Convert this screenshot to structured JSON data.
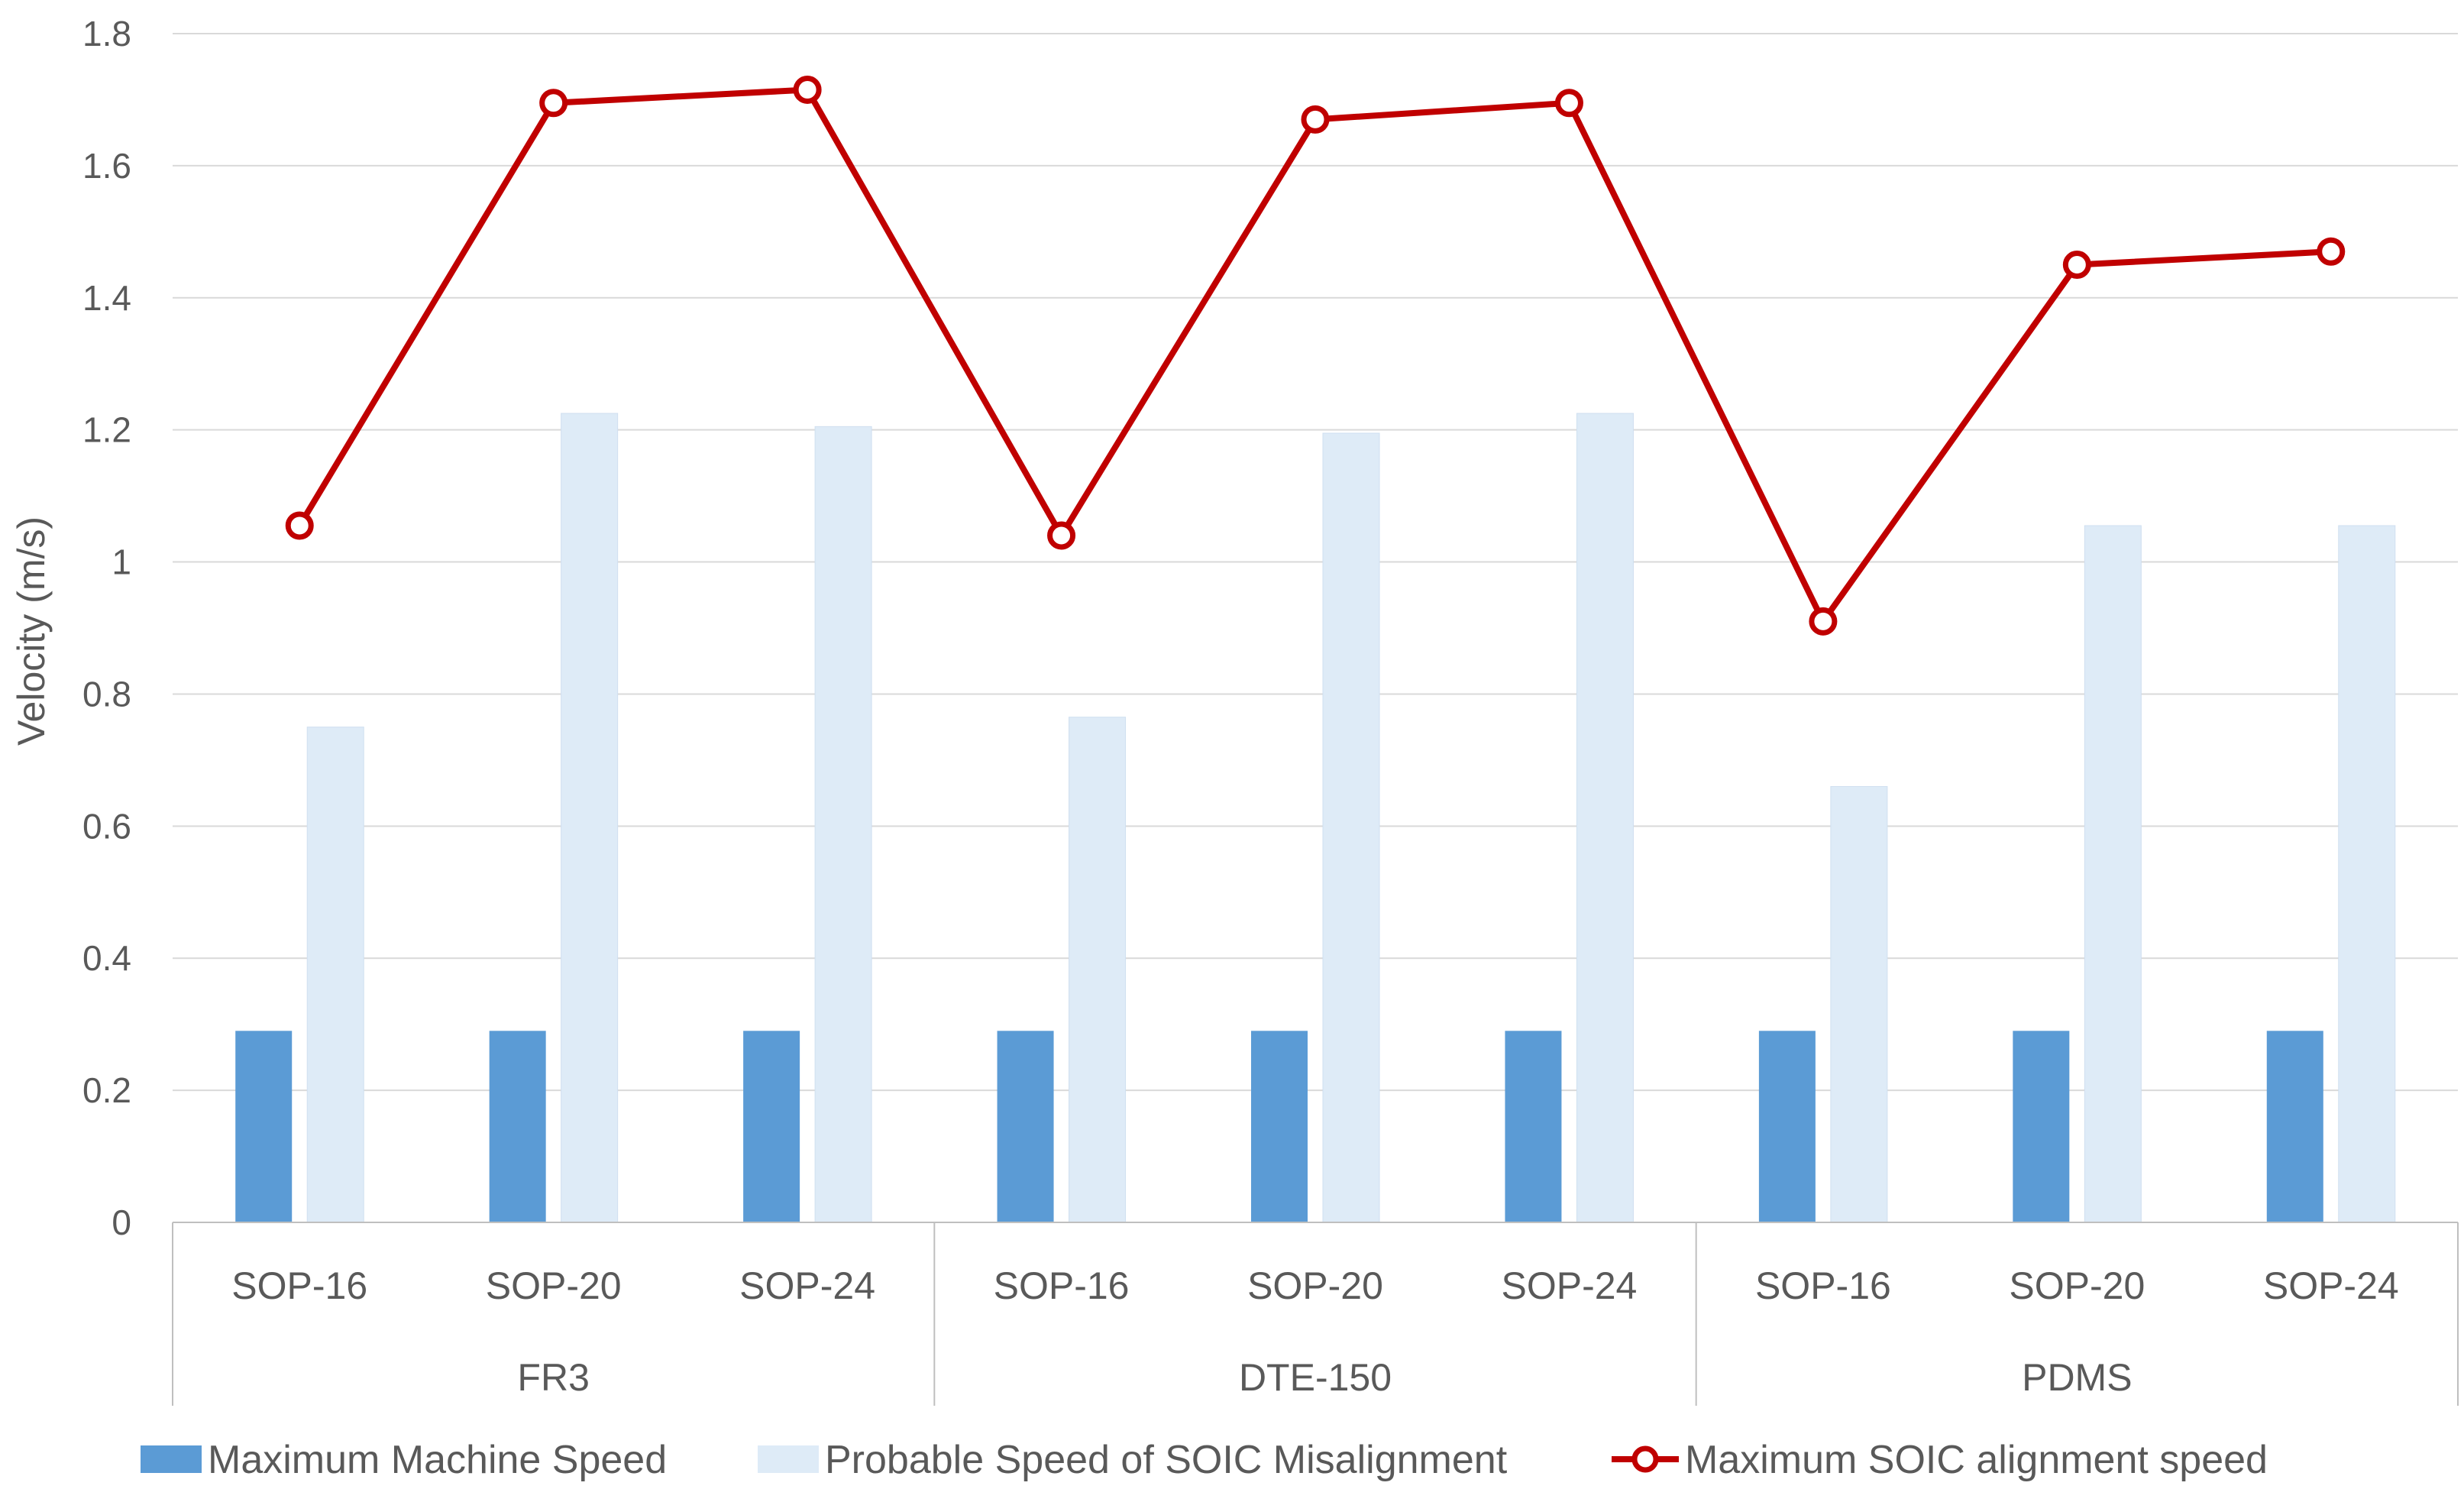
{
  "chart_data": {
    "type": "bar",
    "title": "",
    "ylabel": "Velocity (m/s)",
    "xlabel": "",
    "ylim": [
      0,
      1.8
    ],
    "yticks": [
      0,
      0.2,
      0.4,
      0.6,
      0.8,
      1,
      1.2,
      1.4,
      1.6,
      1.8
    ],
    "ytick_labels": [
      "0",
      "0.2",
      "0.4",
      "0.6",
      "0.8",
      "1",
      "1.2",
      "1.4",
      "1.6",
      "1.8"
    ],
    "groups": [
      {
        "name": "FR3",
        "categories": [
          "SOP-16",
          "SOP-20",
          "SOP-24"
        ]
      },
      {
        "name": "DTE-150",
        "categories": [
          "SOP-16",
          "SOP-20",
          "SOP-24"
        ]
      },
      {
        "name": "PDMS",
        "categories": [
          "SOP-16",
          "SOP-20",
          "SOP-24"
        ]
      }
    ],
    "series": [
      {
        "name": "Maximum Machine Speed",
        "kind": "bar",
        "color": "#5b9bd5",
        "values": [
          0.29,
          0.29,
          0.29,
          0.29,
          0.29,
          0.29,
          0.29,
          0.29,
          0.29
        ]
      },
      {
        "name": "Probable Speed of SOIC Misalignment",
        "kind": "bar",
        "color": "#deebf7",
        "values": [
          0.75,
          1.225,
          1.205,
          0.765,
          1.195,
          1.225,
          0.66,
          1.055,
          1.055
        ]
      },
      {
        "name": "Maximum SOIC alignment speed",
        "kind": "line",
        "color": "#c00000",
        "values": [
          1.055,
          1.695,
          1.715,
          1.04,
          1.67,
          1.695,
          0.91,
          1.45,
          1.47
        ]
      }
    ],
    "grid": true,
    "legend": "bottom"
  }
}
